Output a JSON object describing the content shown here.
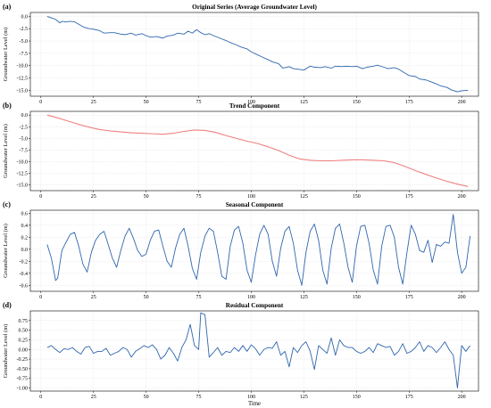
{
  "chart_data": [
    {
      "panel": "(a)",
      "type": "line",
      "title": "Original Series (Average Groundwater Level)",
      "ylabel": "Groundwater Level (m)",
      "xlabel": "",
      "color": "#2f66ad",
      "xlim": [
        -5,
        208
      ],
      "ylim": [
        -16.2,
        0.8
      ],
      "yticks": [
        0.0,
        -2.5,
        -5.0,
        -7.5,
        -10.0,
        -12.5,
        -15.0
      ],
      "xticks": [
        0,
        25,
        50,
        75,
        100,
        125,
        150,
        175,
        200
      ],
      "grid": true,
      "x": [
        3,
        5,
        7,
        9,
        10,
        12,
        14,
        16,
        18,
        20,
        22,
        25,
        28,
        30,
        33,
        35,
        38,
        40,
        43,
        45,
        48,
        50,
        52,
        55,
        58,
        60,
        63,
        65,
        68,
        70,
        72,
        74,
        76,
        78,
        80,
        82,
        85,
        88,
        90,
        93,
        95,
        98,
        100,
        103,
        105,
        108,
        110,
        113,
        115,
        118,
        120,
        122,
        125,
        128,
        130,
        133,
        135,
        138,
        140,
        143,
        145,
        148,
        150,
        153,
        155,
        158,
        160,
        163,
        165,
        168,
        170,
        173,
        175,
        178,
        180,
        183,
        185,
        188,
        190,
        193,
        195,
        198,
        200,
        203
      ],
      "y": [
        0.0,
        -0.3,
        -0.6,
        -1.3,
        -1.0,
        -1.1,
        -1.0,
        -1.1,
        -1.6,
        -2.1,
        -2.4,
        -2.6,
        -2.9,
        -3.4,
        -3.3,
        -3.3,
        -3.6,
        -3.7,
        -3.4,
        -3.8,
        -3.5,
        -3.9,
        -4.2,
        -4.1,
        -4.4,
        -4.0,
        -3.8,
        -3.4,
        -3.6,
        -3.0,
        -3.4,
        -2.7,
        -3.3,
        -3.7,
        -3.5,
        -3.9,
        -4.4,
        -4.9,
        -5.3,
        -5.8,
        -6.2,
        -6.6,
        -7.2,
        -7.8,
        -8.2,
        -8.8,
        -9.2,
        -9.6,
        -10.5,
        -10.2,
        -10.6,
        -10.7,
        -10.9,
        -10.1,
        -10.3,
        -10.4,
        -10.2,
        -10.5,
        -10.1,
        -10.2,
        -10.1,
        -10.2,
        -10.1,
        -10.6,
        -10.3,
        -10.1,
        -9.9,
        -10.3,
        -10.6,
        -10.4,
        -10.7,
        -11.5,
        -12.0,
        -12.2,
        -12.7,
        -12.9,
        -13.2,
        -13.7,
        -14.1,
        -14.4,
        -14.9,
        -15.3,
        -15.1,
        -15.0
      ]
    },
    {
      "panel": "(b)",
      "type": "line",
      "title": "Trend Component",
      "ylabel": "Groundwater Level (m)",
      "xlabel": "",
      "color": "#f08080",
      "xlim": [
        -5,
        208
      ],
      "ylim": [
        -16.2,
        0.8
      ],
      "yticks": [
        0.0,
        -2.5,
        -5.0,
        -7.5,
        -10.0,
        -12.5,
        -15.0
      ],
      "xticks": [
        0,
        25,
        50,
        75,
        100,
        125,
        150,
        175,
        200
      ],
      "grid": true,
      "x": [
        3,
        8,
        13,
        18,
        23,
        28,
        33,
        38,
        43,
        48,
        53,
        58,
        63,
        68,
        73,
        78,
        83,
        88,
        93,
        98,
        103,
        108,
        113,
        118,
        123,
        128,
        133,
        138,
        143,
        148,
        153,
        158,
        163,
        168,
        173,
        178,
        183,
        188,
        193,
        198,
        203
      ],
      "y": [
        0.0,
        -0.6,
        -1.3,
        -2.0,
        -2.6,
        -3.1,
        -3.4,
        -3.6,
        -3.8,
        -3.9,
        -4.0,
        -4.1,
        -3.9,
        -3.5,
        -3.2,
        -3.3,
        -3.7,
        -4.4,
        -5.0,
        -5.6,
        -6.1,
        -6.8,
        -7.6,
        -8.6,
        -9.4,
        -9.7,
        -9.8,
        -9.8,
        -9.7,
        -9.6,
        -9.6,
        -9.7,
        -9.8,
        -10.2,
        -11.0,
        -11.9,
        -12.7,
        -13.5,
        -14.2,
        -14.8,
        -15.3
      ]
    },
    {
      "panel": "(c)",
      "type": "line",
      "title": "Seasonal Component",
      "ylabel": "Groundwater Level (m)",
      "xlabel": "",
      "color": "#2f66ad",
      "xlim": [
        -5,
        208
      ],
      "ylim": [
        -0.7,
        0.65
      ],
      "yticks": [
        0.6,
        0.4,
        0.2,
        0.0,
        -0.2,
        -0.4,
        -0.6
      ],
      "xticks": [
        0,
        25,
        50,
        75,
        100,
        125,
        150,
        175,
        200
      ],
      "grid": true,
      "x": [
        3,
        5,
        7,
        8,
        10,
        12,
        14,
        16,
        18,
        20,
        22,
        24,
        26,
        28,
        30,
        32,
        34,
        36,
        38,
        40,
        42,
        44,
        46,
        48,
        50,
        52,
        54,
        56,
        58,
        60,
        62,
        64,
        66,
        68,
        70,
        72,
        74,
        76,
        78,
        80,
        82,
        84,
        86,
        88,
        90,
        92,
        94,
        96,
        98,
        100,
        102,
        104,
        106,
        108,
        110,
        112,
        114,
        116,
        118,
        120,
        122,
        124,
        126,
        128,
        130,
        132,
        134,
        136,
        138,
        140,
        142,
        144,
        146,
        148,
        150,
        152,
        154,
        156,
        158,
        160,
        162,
        164,
        166,
        168,
        170,
        172,
        174,
        176,
        178,
        180,
        182,
        184,
        186,
        188,
        190,
        192,
        194,
        196,
        198,
        200,
        202,
        204
      ],
      "y": [
        0.08,
        -0.15,
        -0.52,
        -0.48,
        -0.02,
        0.12,
        0.25,
        0.28,
        0.05,
        -0.25,
        -0.38,
        -0.05,
        0.15,
        0.25,
        0.3,
        0.08,
        -0.15,
        -0.3,
        -0.02,
        0.22,
        0.35,
        0.18,
        -0.02,
        -0.12,
        -0.08,
        0.15,
        0.3,
        0.32,
        0.05,
        -0.2,
        -0.3,
        0.02,
        0.25,
        0.35,
        0.05,
        -0.32,
        -0.5,
        -0.05,
        0.22,
        0.35,
        0.3,
        -0.05,
        -0.45,
        -0.5,
        0.05,
        0.32,
        0.38,
        0.1,
        -0.35,
        -0.55,
        -0.1,
        0.25,
        0.4,
        0.25,
        -0.2,
        -0.45,
        0.02,
        0.3,
        0.38,
        0.1,
        -0.35,
        -0.6,
        -0.05,
        0.3,
        0.42,
        0.15,
        -0.35,
        -0.58,
        0.02,
        0.35,
        0.42,
        0.1,
        -0.3,
        -0.55,
        0.05,
        0.38,
        0.4,
        0.1,
        -0.35,
        -0.58,
        0.05,
        0.38,
        0.4,
        0.2,
        -0.3,
        -0.58,
        -0.05,
        0.4,
        0.25,
        -0.02,
        -0.05,
        0.15,
        -0.22,
        0.08,
        0.05,
        0.12,
        0.1,
        0.58,
        -0.05,
        -0.4,
        -0.3,
        0.22
      ]
    },
    {
      "panel": "(d)",
      "type": "line",
      "title": "Residual Component",
      "ylabel": "Groundwater Level (m)",
      "xlabel": "Time",
      "color": "#2f66ad",
      "xlim": [
        -5,
        208
      ],
      "ylim": [
        -1.08,
        1.0
      ],
      "yticks": [
        0.75,
        0.5,
        0.25,
        0.0,
        -0.25,
        -0.5,
        -0.75,
        -1.0
      ],
      "xticks": [
        0,
        25,
        50,
        75,
        100,
        125,
        150,
        175,
        200
      ],
      "grid": true,
      "x": [
        3,
        5,
        7,
        9,
        11,
        13,
        15,
        17,
        19,
        21,
        23,
        25,
        27,
        29,
        31,
        33,
        35,
        37,
        39,
        41,
        43,
        45,
        47,
        49,
        51,
        53,
        55,
        57,
        59,
        61,
        63,
        65,
        67,
        69,
        71,
        73,
        75,
        76,
        78,
        80,
        82,
        84,
        86,
        88,
        90,
        92,
        94,
        96,
        98,
        100,
        102,
        104,
        106,
        108,
        110,
        112,
        114,
        116,
        118,
        120,
        122,
        124,
        126,
        128,
        130,
        132,
        134,
        136,
        138,
        140,
        142,
        144,
        146,
        148,
        150,
        152,
        154,
        156,
        158,
        160,
        162,
        164,
        166,
        168,
        170,
        172,
        174,
        176,
        178,
        180,
        182,
        184,
        186,
        188,
        190,
        192,
        194,
        196,
        198,
        200,
        202,
        204
      ],
      "y": [
        0.05,
        0.1,
        0.0,
        -0.08,
        0.02,
        0.0,
        0.05,
        -0.05,
        -0.12,
        0.05,
        0.08,
        -0.1,
        -0.05,
        -0.05,
        0.03,
        -0.15,
        -0.1,
        -0.05,
        0.05,
        0.0,
        -0.2,
        -0.05,
        0.02,
        0.1,
        0.05,
        0.12,
        0.0,
        -0.25,
        -0.15,
        0.05,
        -0.1,
        -0.3,
        0.05,
        0.25,
        0.65,
        0.1,
        0.0,
        0.95,
        0.9,
        -0.2,
        -0.08,
        0.05,
        -0.15,
        -0.05,
        -0.08,
        0.05,
        -0.05,
        0.1,
        -0.05,
        0.12,
        0.02,
        -0.15,
        0.0,
        0.05,
        0.03,
        0.2,
        -0.15,
        -0.05,
        -0.45,
        0.05,
        -0.08,
        0.1,
        0.2,
        -0.05,
        -0.52,
        0.1,
        0.0,
        -0.1,
        0.3,
        -0.15,
        0.25,
        0.1,
        0.05,
        0.05,
        -0.05,
        -0.1,
        -0.05,
        0.05,
        -0.08,
        0.15,
        0.1,
        0.05,
        0.08,
        -0.15,
        -0.05,
        0.15,
        -0.1,
        -0.05,
        0.05,
        0.2,
        -0.05,
        0.1,
        0.05,
        -0.08,
        0.05,
        0.2,
        0.0,
        -0.15,
        -1.0,
        0.1,
        -0.05,
        0.1
      ]
    }
  ]
}
